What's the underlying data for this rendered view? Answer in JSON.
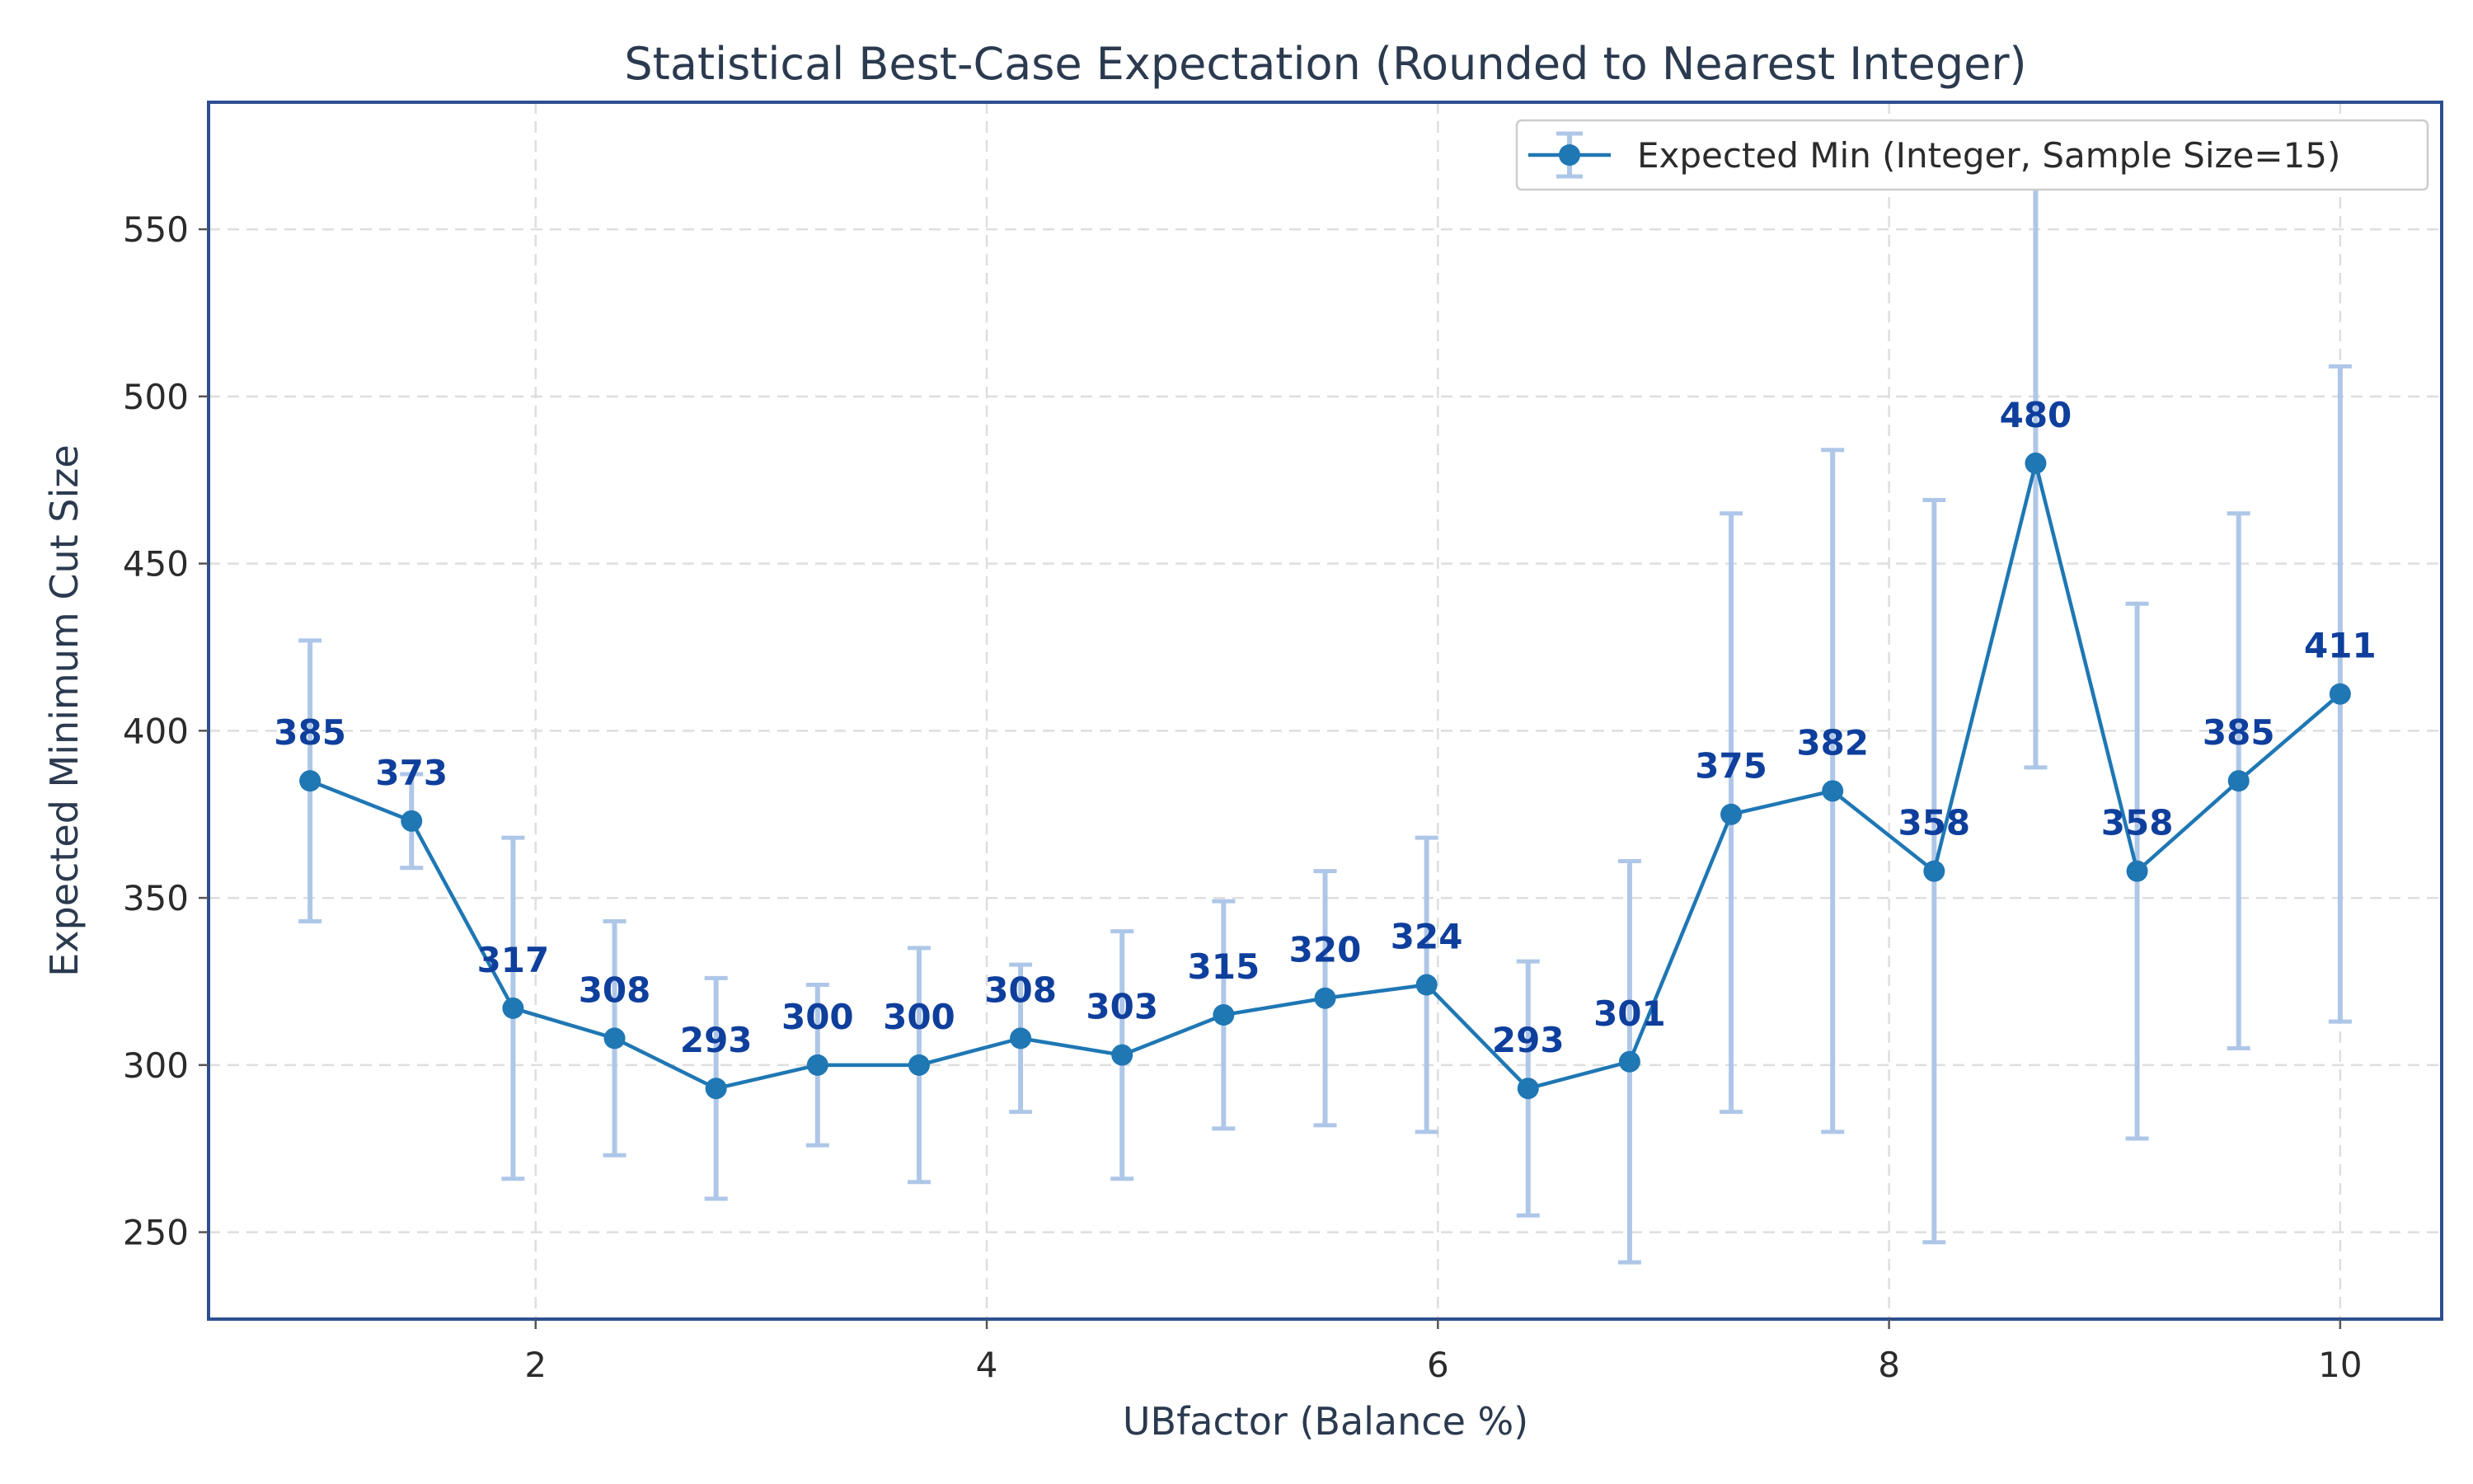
{
  "chart_data": {
    "type": "line",
    "title": "Statistical Best-Case Expectation (Rounded to Nearest Integer)",
    "xlabel": "UBfactor (Balance %)",
    "ylabel": "Expected Minimum Cut Size",
    "xlim": [
      0.55,
      10.45
    ],
    "ylim": [
      224,
      588
    ],
    "xticks": [
      2,
      4,
      6,
      8,
      10
    ],
    "xtick_labels": [
      "2",
      "4",
      "6",
      "8",
      "10"
    ],
    "yticks": [
      250,
      300,
      350,
      400,
      450,
      500,
      550
    ],
    "ytick_labels": [
      "250",
      "300",
      "350",
      "400",
      "450",
      "500",
      "550"
    ],
    "grid": true,
    "legend_position": "top-right",
    "series": [
      {
        "name": "Expected Min (Integer, Sample Size=15)",
        "color": "#1f77b4",
        "errorbar_color": "#aec7e8",
        "x": [
          1.0,
          1.45,
          1.9,
          2.35,
          2.8,
          3.25,
          3.7,
          4.15,
          4.6,
          5.05,
          5.5,
          5.95,
          6.4,
          6.85,
          7.3,
          7.75,
          8.2,
          8.65,
          9.1,
          9.55,
          10.0
        ],
        "values": [
          385,
          373,
          317,
          308,
          293,
          300,
          300,
          308,
          303,
          315,
          320,
          324,
          293,
          301,
          375,
          382,
          358,
          480,
          358,
          385,
          411
        ],
        "labels": [
          "385",
          "373",
          "317",
          "308",
          "293",
          "300",
          "300",
          "308",
          "303",
          "315",
          "320",
          "324",
          "293",
          "301",
          "375",
          "382",
          "358",
          "480",
          "358",
          "385",
          "411"
        ],
        "err_low": [
          343,
          359,
          266,
          273,
          260,
          276,
          265,
          286,
          266,
          281,
          282,
          280,
          255,
          241,
          286,
          280,
          247,
          389,
          278,
          305,
          313
        ],
        "err_high": [
          427,
          387,
          368,
          343,
          326,
          324,
          335,
          330,
          340,
          349,
          358,
          368,
          331,
          361,
          465,
          484,
          469,
          571,
          438,
          465,
          509
        ]
      }
    ]
  }
}
